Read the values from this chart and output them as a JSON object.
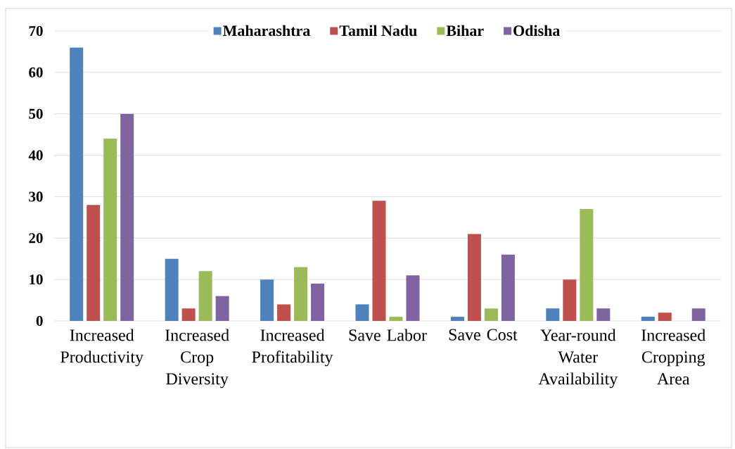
{
  "chart_data": {
    "type": "bar",
    "categories": [
      "Increased Productivity",
      "Increased Crop Diversity",
      "Increased Profitability",
      "Save Labor",
      "Save Cost",
      "Year-round Water Availability",
      "Increased Cropping Area"
    ],
    "series": [
      {
        "name": "Maharashtra",
        "color": "#4f81bd",
        "values": [
          66,
          15,
          10,
          4,
          1,
          3,
          1
        ]
      },
      {
        "name": "Tamil Nadu",
        "color": "#c0504d",
        "values": [
          28,
          3,
          4,
          29,
          21,
          10,
          2
        ]
      },
      {
        "name": "Bihar",
        "color": "#9bbb59",
        "values": [
          44,
          12,
          13,
          1,
          3,
          27,
          0
        ]
      },
      {
        "name": "Odisha",
        "color": "#8064a2",
        "values": [
          50,
          6,
          9,
          11,
          16,
          3,
          3
        ]
      }
    ],
    "ylim": [
      0,
      70
    ],
    "yticks": [
      0,
      10,
      20,
      30,
      40,
      50,
      60,
      70
    ],
    "grid": "y",
    "legend": "top"
  }
}
